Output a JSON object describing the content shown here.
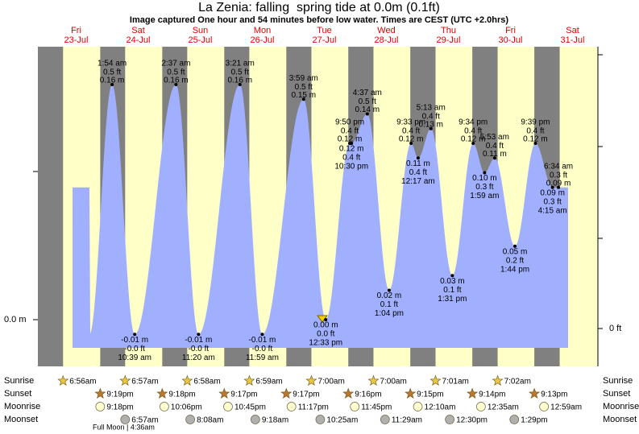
{
  "chart_data": {
    "type": "tide",
    "title": "La Zenia: falling  spring tide at 0.0m (0.1ft)",
    "subtitle": "Image captured One hour and 54 minutes before low water. Times are CEST (UTC +2.0hrs)",
    "yticks": [
      {
        "value": 0,
        "label": "0.0 m"
      }
    ],
    "y2ticks": [
      {
        "value": 0,
        "label": "0 ft"
      }
    ],
    "row_labels": [
      "Sunrise",
      "Sunset",
      "Moonrise",
      "Moonset"
    ],
    "days": [
      {
        "dow": "Fri",
        "date": "23-Jul",
        "sunrise": "6:56am",
        "sunset": "9:19pm",
        "moonrise": "9:18pm",
        "tides": []
      },
      {
        "dow": "Sat",
        "date": "24-Jul",
        "sunrise": "6:57am",
        "sunset": "9:18pm",
        "moonrise": "10:06pm",
        "moonset": "6:57am",
        "moon_phase": "Full Moon | 4:36am",
        "tides": [
          {
            "time": "1:54 am",
            "m": 0.16,
            "m_label": "0.16 m",
            "ft": "0.5 ft"
          },
          {
            "time": "10:39 am",
            "m": -0.01,
            "m_label": "-0.01 m",
            "ft": "-0.0 ft"
          }
        ]
      },
      {
        "dow": "Sun",
        "date": "25-Jul",
        "sunrise": "6:58am",
        "sunset": "9:17pm",
        "moonrise": "10:45pm",
        "moonset": "8:08am",
        "tides": [
          {
            "time": "2:37 am",
            "m": 0.16,
            "m_label": "0.16 m",
            "ft": "0.5 ft"
          },
          {
            "time": "11:20 am",
            "m": -0.01,
            "m_label": "-0.01 m",
            "ft": "-0.0 ft"
          }
        ]
      },
      {
        "dow": "Mon",
        "date": "26-Jul",
        "sunrise": "6:59am",
        "sunset": "9:17pm",
        "moonrise": "11:17pm",
        "moonset": "9:18am",
        "tides": [
          {
            "time": "3:21 am",
            "m": 0.16,
            "m_label": "0.16 m",
            "ft": "0.5 ft"
          },
          {
            "time": "11:59 am",
            "m": -0.01,
            "m_label": "-0.01 m",
            "ft": "-0.0 ft"
          }
        ]
      },
      {
        "dow": "Tue",
        "date": "27-Jul",
        "sunrise": "7:00am",
        "sunset": "9:16pm",
        "moonrise": "11:45pm",
        "moonset": "10:25am",
        "tides": [
          {
            "time": "3:59 am",
            "m": 0.15,
            "m_label": "0.15 m",
            "ft": "0.5 ft"
          },
          {
            "time": "12:33 pm",
            "m": 0.0,
            "m_label": "0.00 m",
            "ft": "0.0 ft"
          },
          {
            "time": "9:50 pm",
            "m": 0.12,
            "m_label": "0.12 m",
            "ft": "0.4 ft"
          },
          {
            "time": "10:30 pm",
            "m": 0.12,
            "m_label": "0.12 m",
            "ft": "0.4 ft"
          }
        ]
      },
      {
        "dow": "Wed",
        "date": "28-Jul",
        "sunrise": "7:00am",
        "sunset": "9:15pm",
        "moonset": "11:29am",
        "tides": [
          {
            "time": "4:37 am",
            "m": 0.14,
            "m_label": "0.14 m",
            "ft": "0.5 ft"
          },
          {
            "time": "1:04 pm",
            "m": 0.02,
            "m_label": "0.02 m",
            "ft": "0.1 ft"
          },
          {
            "time": "9:33 pm",
            "m": 0.12,
            "m_label": "0.12 m",
            "ft": "0.4 ft"
          }
        ]
      },
      {
        "dow": "Thu",
        "date": "29-Jul",
        "sunrise": "7:01am",
        "sunset": "9:14pm",
        "moonrise": "12:10am",
        "moonset": "12:30pm",
        "tides": [
          {
            "time": "12:17 am",
            "m": 0.11,
            "m_label": "0.11 m",
            "ft": "0.4 ft"
          },
          {
            "time": "5:13 am",
            "m": 0.13,
            "m_label": "0.13 m",
            "ft": "0.4 ft"
          },
          {
            "time": "1:31 pm",
            "m": 0.03,
            "m_label": "0.03 m",
            "ft": "0.1 ft"
          },
          {
            "time": "9:34 pm",
            "m": 0.12,
            "m_label": "0.12 m",
            "ft": "0.4 ft"
          }
        ]
      },
      {
        "dow": "Fri",
        "date": "30-Jul",
        "sunrise": "7:02am",
        "sunset": "9:13pm",
        "moonrise": "12:35am",
        "moonset": "1:29pm",
        "tides": [
          {
            "time": "1:59 am",
            "m": 0.1,
            "m_label": "0.10 m",
            "ft": "0.3 ft"
          },
          {
            "time": "5:53 am",
            "m": 0.11,
            "m_label": "0.11 m",
            "ft": "0.4 ft"
          },
          {
            "time": "1:44 pm",
            "m": 0.05,
            "m_label": "0.05 m",
            "ft": "0.2 ft"
          },
          {
            "time": "9:39 pm",
            "m": 0.12,
            "m_label": "0.12 m",
            "ft": "0.4 ft"
          }
        ]
      },
      {
        "dow": "Sat",
        "date": "31-Jul",
        "moonrise": "12:59am",
        "tides": [
          {
            "time": "4:15 am",
            "m": 0.09,
            "m_label": "0.09 m",
            "ft": "0.3 ft"
          },
          {
            "time": "6:34 am",
            "m": 0.09,
            "m_label": "0.09 m",
            "ft": "0.3 ft"
          }
        ]
      }
    ]
  }
}
